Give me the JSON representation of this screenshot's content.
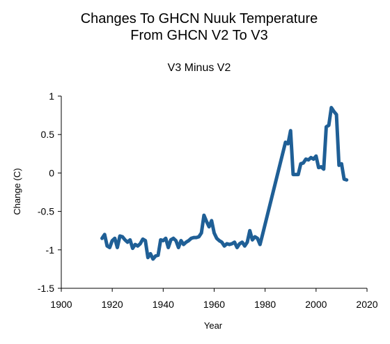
{
  "chart_data": {
    "type": "line",
    "title": [
      "Changes To GHCN Nuuk Temperature",
      "From GHCN V2 To V3"
    ],
    "subtitle": "V3 Minus V2",
    "xlabel": "Year",
    "ylabel": "Change (C)",
    "xlim": [
      1900,
      2020
    ],
    "ylim": [
      -1.5,
      1
    ],
    "x_ticks": [
      1900,
      1920,
      1940,
      1960,
      1980,
      2000,
      2020
    ],
    "y_ticks": [
      1,
      0.5,
      0,
      -0.5,
      -1,
      -1.5
    ],
    "x_tick_labels": [
      "1900",
      "1920",
      "1940",
      "1960",
      "1980",
      "2000",
      "2020"
    ],
    "y_tick_labels": [
      "1",
      "0.5",
      "0",
      "-0.5",
      "-1",
      "-1.5"
    ],
    "grid": false,
    "legend": "none",
    "series": [
      {
        "color": "#1f5f96",
        "points": [
          [
            1916,
            -0.85
          ],
          [
            1917,
            -0.8
          ],
          [
            1918,
            -0.95
          ],
          [
            1919,
            -0.97
          ],
          [
            1920,
            -0.88
          ],
          [
            1921,
            -0.85
          ],
          [
            1922,
            -0.97
          ],
          [
            1923,
            -0.82
          ],
          [
            1924,
            -0.83
          ],
          [
            1925,
            -0.87
          ],
          [
            1926,
            -0.9
          ],
          [
            1927,
            -0.87
          ],
          [
            1928,
            -0.98
          ],
          [
            1929,
            -0.93
          ],
          [
            1930,
            -0.95
          ],
          [
            1931,
            -0.92
          ],
          [
            1932,
            -0.86
          ],
          [
            1933,
            -0.88
          ],
          [
            1934,
            -1.1
          ],
          [
            1935,
            -1.05
          ],
          [
            1936,
            -1.12
          ],
          [
            1937,
            -1.08
          ],
          [
            1938,
            -1.07
          ],
          [
            1939,
            -0.87
          ],
          [
            1940,
            -0.88
          ],
          [
            1941,
            -0.85
          ],
          [
            1942,
            -0.97
          ],
          [
            1943,
            -0.87
          ],
          [
            1944,
            -0.85
          ],
          [
            1945,
            -0.88
          ],
          [
            1946,
            -0.97
          ],
          [
            1947,
            -0.88
          ],
          [
            1948,
            -0.93
          ],
          [
            1949,
            -0.9
          ],
          [
            1950,
            -0.88
          ],
          [
            1951,
            -0.85
          ],
          [
            1952,
            -0.84
          ],
          [
            1953,
            -0.84
          ],
          [
            1954,
            -0.83
          ],
          [
            1955,
            -0.78
          ],
          [
            1956,
            -0.55
          ],
          [
            1957,
            -0.63
          ],
          [
            1958,
            -0.7
          ],
          [
            1959,
            -0.62
          ],
          [
            1960,
            -0.78
          ],
          [
            1961,
            -0.85
          ],
          [
            1962,
            -0.88
          ],
          [
            1963,
            -0.9
          ],
          [
            1964,
            -0.95
          ],
          [
            1965,
            -0.92
          ],
          [
            1966,
            -0.93
          ],
          [
            1967,
            -0.92
          ],
          [
            1968,
            -0.9
          ],
          [
            1969,
            -0.97
          ],
          [
            1970,
            -0.92
          ],
          [
            1971,
            -0.9
          ],
          [
            1972,
            -0.95
          ],
          [
            1973,
            -0.9
          ],
          [
            1974,
            -0.75
          ],
          [
            1975,
            -0.87
          ],
          [
            1976,
            -0.83
          ],
          [
            1977,
            -0.85
          ],
          [
            1978,
            -0.93
          ],
          [
            1979,
            -0.8
          ],
          [
            1988,
            0.4
          ],
          [
            1989,
            0.38
          ],
          [
            1990,
            0.55
          ],
          [
            1991,
            -0.02
          ],
          [
            1992,
            -0.02
          ],
          [
            1993,
            -0.02
          ],
          [
            1994,
            0.12
          ],
          [
            1995,
            0.13
          ],
          [
            1996,
            0.18
          ],
          [
            1997,
            0.17
          ],
          [
            1998,
            0.2
          ],
          [
            1999,
            0.18
          ],
          [
            2000,
            0.22
          ],
          [
            2001,
            0.07
          ],
          [
            2002,
            0.08
          ],
          [
            2003,
            0.05
          ],
          [
            2004,
            0.6
          ],
          [
            2005,
            0.62
          ],
          [
            2006,
            0.85
          ],
          [
            2007,
            0.8
          ],
          [
            2008,
            0.76
          ],
          [
            2009,
            0.1
          ],
          [
            2010,
            0.12
          ],
          [
            2011,
            -0.08
          ],
          [
            2012,
            -0.09
          ]
        ]
      }
    ]
  }
}
